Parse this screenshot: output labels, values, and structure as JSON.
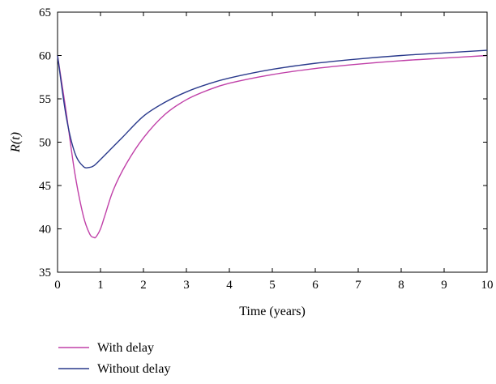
{
  "chart_data": {
    "type": "line",
    "title": "",
    "xlabel": "Time (years)",
    "ylabel": "R(t)",
    "xlim": [
      0,
      10
    ],
    "ylim": [
      35,
      65
    ],
    "xticks": [
      0,
      1,
      2,
      3,
      4,
      5,
      6,
      7,
      8,
      9,
      10
    ],
    "yticks": [
      35,
      40,
      45,
      50,
      55,
      60,
      65
    ],
    "grid": false,
    "legend": "bottom-left",
    "series": [
      {
        "name": "With delay",
        "color": "#c040a8",
        "x": [
          0,
          0.2,
          0.4,
          0.6,
          0.75,
          0.85,
          0.9,
          1.0,
          1.1,
          1.3,
          1.6,
          2.0,
          2.5,
          3.0,
          3.5,
          4.0,
          5.0,
          6.0,
          7.0,
          8.0,
          9.0,
          10.0
        ],
        "y": [
          60.0,
          53.5,
          46.5,
          41.5,
          39.4,
          39.0,
          39.1,
          40.0,
          41.5,
          44.5,
          47.5,
          50.5,
          53.2,
          54.9,
          56.0,
          56.8,
          57.8,
          58.5,
          59.0,
          59.4,
          59.7,
          60.0
        ]
      },
      {
        "name": "Without delay",
        "color": "#2a3a8c",
        "x": [
          0,
          0.2,
          0.4,
          0.6,
          0.75,
          0.85,
          1.0,
          1.2,
          1.5,
          2.0,
          2.5,
          3.0,
          3.5,
          4.0,
          5.0,
          6.0,
          7.0,
          8.0,
          9.0,
          10.0
        ],
        "y": [
          60.0,
          53.0,
          48.8,
          47.2,
          47.1,
          47.3,
          48.0,
          49.0,
          50.5,
          53.0,
          54.6,
          55.8,
          56.7,
          57.4,
          58.4,
          59.1,
          59.6,
          60.0,
          60.3,
          60.6
        ]
      }
    ]
  }
}
